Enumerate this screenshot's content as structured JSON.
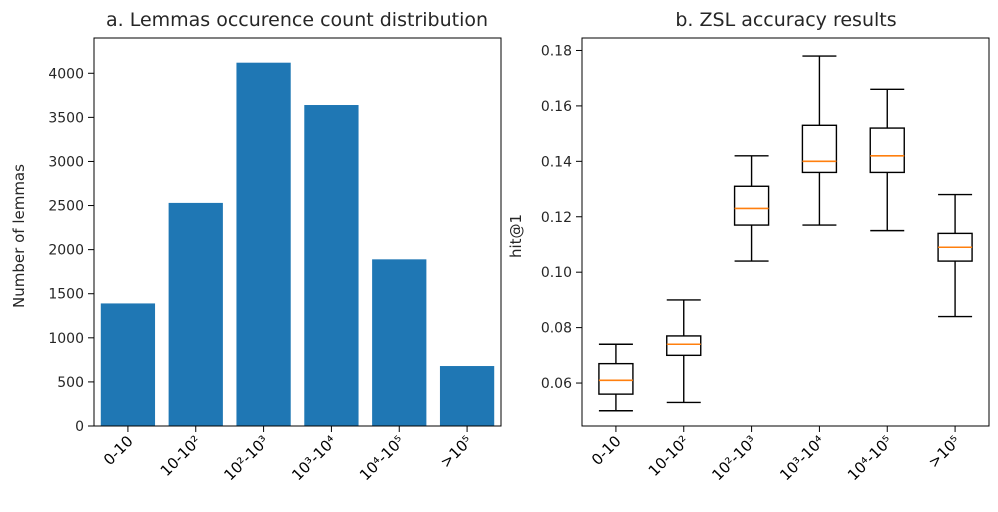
{
  "chart_data": [
    {
      "type": "bar",
      "title": "a. Lemmas occurence count distribution",
      "xlabel": "",
      "ylabel": "Number of lemmas",
      "ylim": [
        0,
        4400
      ],
      "yticks": [
        0,
        500,
        1000,
        1500,
        2000,
        2500,
        3000,
        3500,
        4000
      ],
      "categories": [
        "0-10",
        "10-10²",
        "10²-10³",
        "10³-10⁴",
        "10⁴-10⁵",
        ">10⁵"
      ],
      "values": [
        1390,
        2530,
        4120,
        3640,
        1890,
        680
      ],
      "color": "#1f77b4",
      "grid": false
    },
    {
      "type": "box",
      "title": "b. ZSL accuracy results",
      "xlabel": "",
      "ylabel": "hit@1",
      "ylim": [
        0.0445,
        0.1845
      ],
      "yticks": [
        0.06,
        0.08,
        0.1,
        0.12,
        0.14,
        0.16,
        0.18
      ],
      "ytick_labels": [
        "0.06",
        "0.08",
        "0.10",
        "0.12",
        "0.14",
        "0.16",
        "0.18"
      ],
      "categories": [
        "0-10",
        "10-10²",
        "10²-10³",
        "10³-10⁴",
        "10⁴-10⁵",
        ">10⁵"
      ],
      "boxes": [
        {
          "whislo": 0.05,
          "q1": 0.056,
          "med": 0.061,
          "q3": 0.067,
          "whishi": 0.074
        },
        {
          "whislo": 0.053,
          "q1": 0.07,
          "med": 0.074,
          "q3": 0.077,
          "whishi": 0.09
        },
        {
          "whislo": 0.104,
          "q1": 0.117,
          "med": 0.123,
          "q3": 0.131,
          "whishi": 0.142
        },
        {
          "whislo": 0.117,
          "q1": 0.136,
          "med": 0.14,
          "q3": 0.153,
          "whishi": 0.178
        },
        {
          "whislo": 0.115,
          "q1": 0.136,
          "med": 0.142,
          "q3": 0.152,
          "whishi": 0.166
        },
        {
          "whislo": 0.084,
          "q1": 0.104,
          "med": 0.109,
          "q3": 0.114,
          "whishi": 0.128
        }
      ],
      "median_color": "#ff7f0e",
      "grid": false
    }
  ]
}
